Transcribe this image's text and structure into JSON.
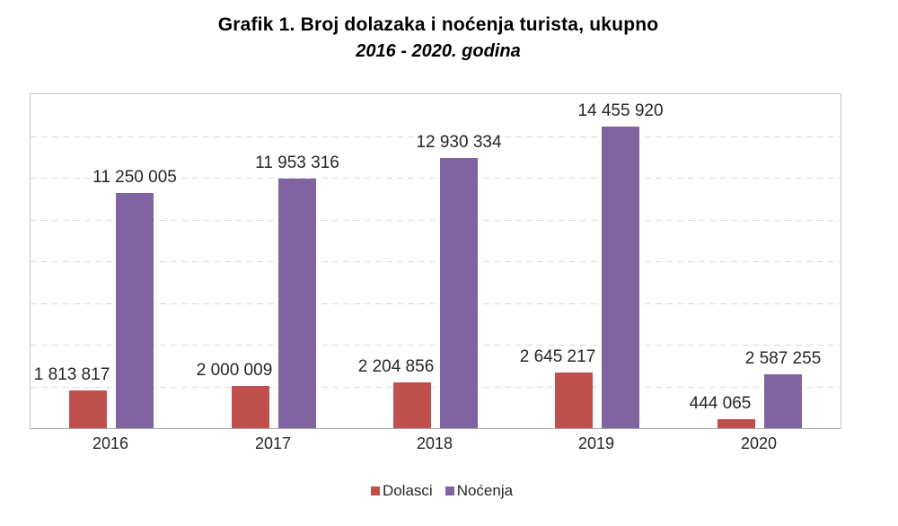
{
  "title": {
    "line1": "Grafik 1. Broj dolazaka i noćenja turista, ukupno",
    "line2": "2016 - 2020. godina"
  },
  "chart_data": {
    "type": "bar",
    "title": "Grafik 1. Broj dolazaka i noćenja turista, ukupno",
    "subtitle": "2016 - 2020. godina",
    "categories": [
      "2016",
      "2017",
      "2018",
      "2019",
      "2020"
    ],
    "series": [
      {
        "name": "Dolasci",
        "color": "#c0504d",
        "values": [
          1813817,
          2000009,
          2204856,
          2645217,
          444065
        ],
        "value_labels": [
          "1 813 817",
          "2 000 009",
          "2 204 856",
          "2 645 217",
          "444 065"
        ]
      },
      {
        "name": "Noćenja",
        "color": "#8064a2",
        "values": [
          11250005,
          11953316,
          12930334,
          14455920,
          2587255
        ],
        "value_labels": [
          "11 250 005",
          "11 953 316",
          "12 930 334",
          "14 455 920",
          "2 587 255"
        ]
      }
    ],
    "xlabel": "",
    "ylabel": "",
    "ylim": [
      0,
      16000000
    ],
    "gridline_step": 2000000,
    "grid": "horizontal-dashed",
    "y_axis_tick_labels_visible": false,
    "legend_position": "bottom",
    "value_labels_position": "above bars"
  },
  "legend": {
    "items": [
      {
        "label": "Dolasci",
        "color": "#c0504d"
      },
      {
        "label": "Noćenja",
        "color": "#8064a2"
      }
    ]
  },
  "colors": {
    "dolasci_bar": "#c0504d",
    "nocenja_bar": "#8064a2",
    "gridline": "#d9d9d9",
    "plot_border": "#c2c2c2",
    "axis_line": "#a8a8a8",
    "label_text": "#262626",
    "title_text": "#000000",
    "background": "#ffffff"
  }
}
